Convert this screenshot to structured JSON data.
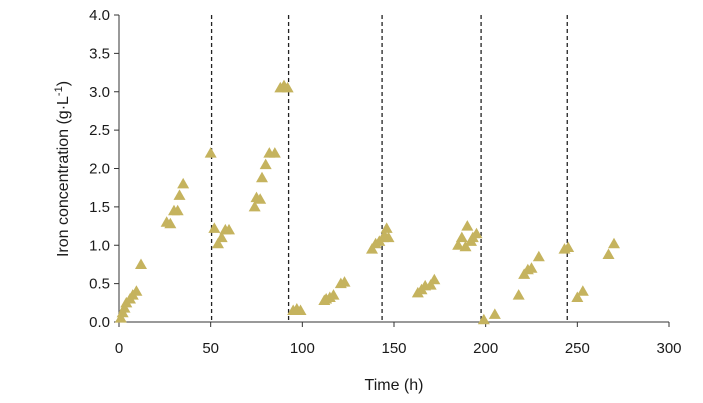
{
  "chart_data": {
    "type": "scatter",
    "title": "",
    "xlabel": "Time (h)",
    "ylabel": {
      "main": "Iron concentration (g·L",
      "sup": "-1",
      "close": ")"
    },
    "xlim": [
      0,
      300
    ],
    "ylim": [
      0,
      4.0
    ],
    "x_ticks": [
      "0",
      "50",
      "100",
      "150",
      "200",
      "250",
      "300"
    ],
    "y_ticks": [
      "0.0",
      "0.5",
      "1.0",
      "1.5",
      "2.0",
      "2.5",
      "3.0",
      "3.5",
      "4.0"
    ],
    "x_tick_values": [
      0,
      50,
      100,
      150,
      200,
      250,
      300
    ],
    "y_tick_values": [
      0,
      0.5,
      1.0,
      1.5,
      2.0,
      2.5,
      3.0,
      3.5,
      4.0
    ],
    "grid": false,
    "legend": "none",
    "marker": "triangle",
    "marker_color": "#C5B35E",
    "vlines": [
      50.5,
      92.5,
      143.5,
      197.5,
      244.5
    ],
    "points": [
      [
        1,
        0.05
      ],
      [
        2,
        0.12
      ],
      [
        3,
        0.18
      ],
      [
        4,
        0.25
      ],
      [
        6,
        0.3
      ],
      [
        7.5,
        0.35
      ],
      [
        9.5,
        0.4
      ],
      [
        12,
        0.75
      ],
      [
        26,
        1.3
      ],
      [
        28,
        1.28
      ],
      [
        30,
        1.45
      ],
      [
        32,
        1.45
      ],
      [
        33,
        1.65
      ],
      [
        35,
        1.8
      ],
      [
        50,
        2.2
      ],
      [
        52,
        1.22
      ],
      [
        54,
        1.02
      ],
      [
        56,
        1.1
      ],
      [
        58,
        1.2
      ],
      [
        60,
        1.2
      ],
      [
        74,
        1.5
      ],
      [
        75,
        1.62
      ],
      [
        77,
        1.6
      ],
      [
        78,
        1.88
      ],
      [
        80,
        2.05
      ],
      [
        82,
        2.2
      ],
      [
        85,
        2.2
      ],
      [
        88,
        3.05
      ],
      [
        90,
        3.08
      ],
      [
        92,
        3.05
      ],
      [
        95,
        0.15
      ],
      [
        97,
        0.17
      ],
      [
        99,
        0.15
      ],
      [
        112,
        0.28
      ],
      [
        113,
        0.3
      ],
      [
        115,
        0.32
      ],
      [
        117,
        0.35
      ],
      [
        121,
        0.5
      ],
      [
        123,
        0.52
      ],
      [
        138,
        0.95
      ],
      [
        140,
        1.02
      ],
      [
        142,
        1.05
      ],
      [
        144,
        1.1
      ],
      [
        145,
        1.12
      ],
      [
        146,
        1.22
      ],
      [
        147,
        1.1
      ],
      [
        163,
        0.38
      ],
      [
        165,
        0.42
      ],
      [
        167,
        0.47
      ],
      [
        170,
        0.48
      ],
      [
        172,
        0.55
      ],
      [
        185,
        1.0
      ],
      [
        187,
        1.1
      ],
      [
        189,
        0.98
      ],
      [
        190,
        1.25
      ],
      [
        192,
        1.05
      ],
      [
        193,
        1.1
      ],
      [
        195,
        1.15
      ],
      [
        199,
        0.03
      ],
      [
        205,
        0.1
      ],
      [
        218,
        0.35
      ],
      [
        221,
        0.62
      ],
      [
        223,
        0.68
      ],
      [
        225,
        0.7
      ],
      [
        229,
        0.85
      ],
      [
        243,
        0.95
      ],
      [
        245,
        0.97
      ],
      [
        250,
        0.32
      ],
      [
        253,
        0.4
      ],
      [
        267,
        0.88
      ],
      [
        270,
        1.02
      ]
    ]
  }
}
